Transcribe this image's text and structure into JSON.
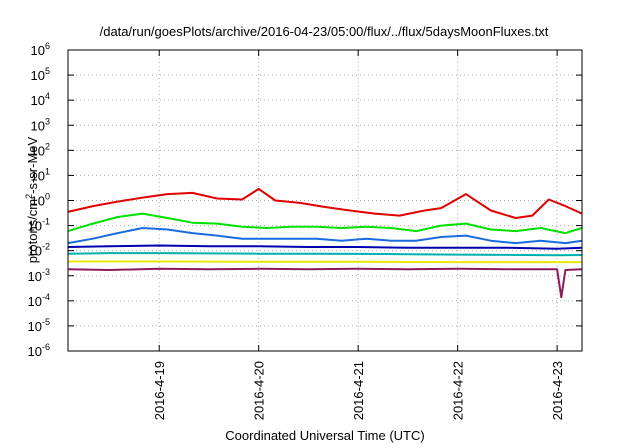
{
  "chart_data": {
    "type": "line",
    "title": "/data/run/goesPlots/archive/2016-04-23/05:00/flux/../flux/5daysMoonFluxes.txt",
    "xlabel": "Coordinated Universal Time (UTC)",
    "ylabel": {
      "base": "protons/cm",
      "sup": "2",
      "rest": "-s-sr-MeV"
    },
    "xlim": [
      "2016-04-18T02:00",
      "2016-04-23T06:00"
    ],
    "ylim_exponents": [
      -6,
      6
    ],
    "yscale": "log",
    "grid": true,
    "x_ticks": [
      {
        "value": "2016-04-19T00:00",
        "label": "2016-4-19"
      },
      {
        "value": "2016-04-20T00:00",
        "label": "2016-4-20"
      },
      {
        "value": "2016-04-21T00:00",
        "label": "2016-4-21"
      },
      {
        "value": "2016-04-22T00:00",
        "label": "2016-4-22"
      },
      {
        "value": "2016-04-23T00:00",
        "label": "2016-4-23"
      }
    ],
    "y_ticks": [
      {
        "value": 1e-06,
        "base": "10",
        "exp": "-6"
      },
      {
        "value": 1e-05,
        "base": "10",
        "exp": "-5"
      },
      {
        "value": 0.0001,
        "base": "10",
        "exp": "-4"
      },
      {
        "value": 0.001,
        "base": "10",
        "exp": "-3"
      },
      {
        "value": 0.01,
        "base": "10",
        "exp": "-2"
      },
      {
        "value": 0.1,
        "base": "10",
        "exp": "-1"
      },
      {
        "value": 1,
        "base": "10",
        "exp": "0"
      },
      {
        "value": 10,
        "base": "10",
        "exp": "1"
      },
      {
        "value": 100,
        "base": "10",
        "exp": "2"
      },
      {
        "value": 1000,
        "base": "10",
        "exp": "3"
      },
      {
        "value": 10000,
        "base": "10",
        "exp": "4"
      },
      {
        "value": 100000,
        "base": "10",
        "exp": "5"
      },
      {
        "value": 1000000,
        "base": "10",
        "exp": "6"
      }
    ],
    "series": [
      {
        "color": "#e00000",
        "x": [
          "2016-04-18T02:00",
          "2016-04-18T08:00",
          "2016-04-18T14:00",
          "2016-04-18T20:00",
          "2016-04-19T02:00",
          "2016-04-19T08:00",
          "2016-04-19T14:00",
          "2016-04-19T20:00",
          "2016-04-20T00:00",
          "2016-04-20T04:00",
          "2016-04-20T10:00",
          "2016-04-20T16:00",
          "2016-04-20T22:00",
          "2016-04-21T04:00",
          "2016-04-21T10:00",
          "2016-04-21T16:00",
          "2016-04-21T20:00",
          "2016-04-22T02:00",
          "2016-04-22T08:00",
          "2016-04-22T14:00",
          "2016-04-22T18:00",
          "2016-04-22T22:00",
          "2016-04-23T02:00",
          "2016-04-23T06:00"
        ],
        "y": [
          0.35,
          0.6,
          0.9,
          1.3,
          1.8,
          2.0,
          1.2,
          1.1,
          2.9,
          1.0,
          0.8,
          0.55,
          0.4,
          0.3,
          0.25,
          0.4,
          0.5,
          1.8,
          0.4,
          0.2,
          0.25,
          1.1,
          0.6,
          0.3
        ]
      },
      {
        "color": "#00e000",
        "x": [
          "2016-04-18T02:00",
          "2016-04-18T08:00",
          "2016-04-18T14:00",
          "2016-04-18T20:00",
          "2016-04-19T02:00",
          "2016-04-19T08:00",
          "2016-04-19T14:00",
          "2016-04-19T20:00",
          "2016-04-20T02:00",
          "2016-04-20T08:00",
          "2016-04-20T14:00",
          "2016-04-20T20:00",
          "2016-04-21T02:00",
          "2016-04-21T08:00",
          "2016-04-21T14:00",
          "2016-04-21T20:00",
          "2016-04-22T02:00",
          "2016-04-22T08:00",
          "2016-04-22T14:00",
          "2016-04-22T20:00",
          "2016-04-23T02:00",
          "2016-04-23T06:00"
        ],
        "y": [
          0.06,
          0.12,
          0.22,
          0.3,
          0.2,
          0.13,
          0.12,
          0.09,
          0.08,
          0.09,
          0.09,
          0.08,
          0.09,
          0.08,
          0.06,
          0.1,
          0.12,
          0.07,
          0.06,
          0.08,
          0.05,
          0.08
        ]
      },
      {
        "color": "#1a6be0",
        "x": [
          "2016-04-18T02:00",
          "2016-04-18T08:00",
          "2016-04-18T14:00",
          "2016-04-18T20:00",
          "2016-04-19T02:00",
          "2016-04-19T08:00",
          "2016-04-19T14:00",
          "2016-04-19T20:00",
          "2016-04-20T02:00",
          "2016-04-20T08:00",
          "2016-04-20T14:00",
          "2016-04-20T20:00",
          "2016-04-21T02:00",
          "2016-04-21T08:00",
          "2016-04-21T14:00",
          "2016-04-21T20:00",
          "2016-04-22T02:00",
          "2016-04-22T08:00",
          "2016-04-22T14:00",
          "2016-04-22T20:00",
          "2016-04-23T02:00",
          "2016-04-23T06:00"
        ],
        "y": [
          0.02,
          0.03,
          0.05,
          0.08,
          0.07,
          0.05,
          0.04,
          0.03,
          0.03,
          0.03,
          0.03,
          0.025,
          0.03,
          0.025,
          0.025,
          0.035,
          0.04,
          0.025,
          0.02,
          0.025,
          0.02,
          0.025
        ]
      },
      {
        "color": "#0000b0",
        "x": [
          "2016-04-18T02:00",
          "2016-04-18T12:00",
          "2016-04-19T00:00",
          "2016-04-19T12:00",
          "2016-04-20T00:00",
          "2016-04-20T12:00",
          "2016-04-21T00:00",
          "2016-04-21T12:00",
          "2016-04-22T00:00",
          "2016-04-22T12:00",
          "2016-04-23T00:00",
          "2016-04-23T06:00"
        ],
        "y": [
          0.014,
          0.015,
          0.016,
          0.015,
          0.015,
          0.014,
          0.014,
          0.013,
          0.013,
          0.013,
          0.012,
          0.013
        ]
      },
      {
        "color": "#00b0b0",
        "x": [
          "2016-04-18T02:00",
          "2016-04-18T12:00",
          "2016-04-19T00:00",
          "2016-04-19T12:00",
          "2016-04-20T00:00",
          "2016-04-20T12:00",
          "2016-04-21T00:00",
          "2016-04-21T12:00",
          "2016-04-22T00:00",
          "2016-04-22T12:00",
          "2016-04-23T00:00",
          "2016-04-23T06:00"
        ],
        "y": [
          0.0075,
          0.008,
          0.008,
          0.0078,
          0.0076,
          0.0075,
          0.0074,
          0.0072,
          0.007,
          0.0068,
          0.0066,
          0.0067
        ]
      },
      {
        "color": "#e8e800",
        "x": [
          "2016-04-18T02:00",
          "2016-04-19T00:00",
          "2016-04-20T00:00",
          "2016-04-21T00:00",
          "2016-04-22T00:00",
          "2016-04-23T00:00",
          "2016-04-23T06:00"
        ],
        "y": [
          0.0037,
          0.0037,
          0.0036,
          0.0036,
          0.0035,
          0.0035,
          0.0035
        ]
      },
      {
        "color": "#8b1a5a",
        "x": [
          "2016-04-18T02:00",
          "2016-04-18T12:00",
          "2016-04-19T00:00",
          "2016-04-19T12:00",
          "2016-04-20T00:00",
          "2016-04-20T12:00",
          "2016-04-21T00:00",
          "2016-04-21T12:00",
          "2016-04-22T00:00",
          "2016-04-22T12:00",
          "2016-04-23T00:00",
          "2016-04-23T01:00",
          "2016-04-23T02:00",
          "2016-04-23T06:00"
        ],
        "y": [
          0.0018,
          0.0017,
          0.0019,
          0.0018,
          0.0019,
          0.0018,
          0.0019,
          0.0018,
          0.0019,
          0.0018,
          0.0018,
          0.00014,
          0.0017,
          0.0018
        ]
      }
    ]
  }
}
